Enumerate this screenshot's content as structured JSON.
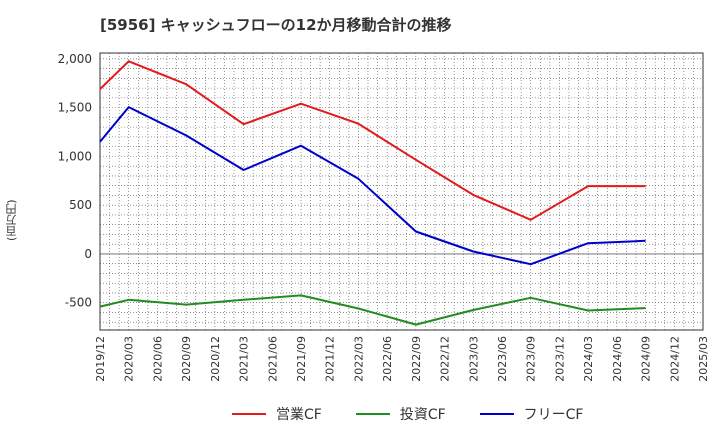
{
  "chart_data": {
    "type": "line",
    "title": "[5956]  キャッシュフローの12か月移動合計の推移",
    "ylabel": "(百万円)",
    "xlabel": "",
    "ylim": [
      -780,
      2060
    ],
    "y_ticks": [
      2000,
      1500,
      1000,
      500,
      0,
      -500
    ],
    "y_tick_labels": [
      "2,000",
      "1,500",
      "1,000",
      "500",
      "0",
      "-500"
    ],
    "x_tick_labels": [
      "2019/12",
      "2020/03",
      "2020/06",
      "2020/09",
      "2020/12",
      "2021/03",
      "2021/06",
      "2021/09",
      "2021/12",
      "2022/03",
      "2022/06",
      "2022/09",
      "2022/12",
      "2023/03",
      "2023/06",
      "2023/09",
      "2023/12",
      "2024/03",
      "2024/06",
      "2024/09",
      "2024/12",
      "2025/03"
    ],
    "grid": true,
    "legend_position": "bottom",
    "series": [
      {
        "name": "営業CF",
        "color": "#e31a1c",
        "points": [
          [
            "2019/12",
            1690
          ],
          [
            "2020/03",
            1975
          ],
          [
            "2020/09",
            1740
          ],
          [
            "2021/03",
            1330
          ],
          [
            "2021/09",
            1540
          ],
          [
            "2022/03",
            1335
          ],
          [
            "2022/09",
            965
          ],
          [
            "2023/03",
            605
          ],
          [
            "2023/09",
            350
          ],
          [
            "2024/03",
            695
          ],
          [
            "2024/09",
            695
          ]
        ]
      },
      {
        "name": "投資CF",
        "color": "#228b22",
        "points": [
          [
            "2019/12",
            -540
          ],
          [
            "2020/03",
            -470
          ],
          [
            "2020/09",
            -520
          ],
          [
            "2021/03",
            -470
          ],
          [
            "2021/09",
            -425
          ],
          [
            "2022/03",
            -560
          ],
          [
            "2022/09",
            -725
          ],
          [
            "2023/03",
            -575
          ],
          [
            "2023/09",
            -450
          ],
          [
            "2024/03",
            -580
          ],
          [
            "2024/09",
            -555
          ]
        ]
      },
      {
        "name": "フリーCF",
        "color": "#0000cd",
        "points": [
          [
            "2019/12",
            1150
          ],
          [
            "2020/03",
            1505
          ],
          [
            "2020/09",
            1215
          ],
          [
            "2021/03",
            860
          ],
          [
            "2021/09",
            1110
          ],
          [
            "2022/03",
            770
          ],
          [
            "2022/09",
            230
          ],
          [
            "2023/03",
            25
          ],
          [
            "2023/09",
            -105
          ],
          [
            "2024/03",
            110
          ],
          [
            "2024/09",
            135
          ]
        ]
      }
    ]
  }
}
